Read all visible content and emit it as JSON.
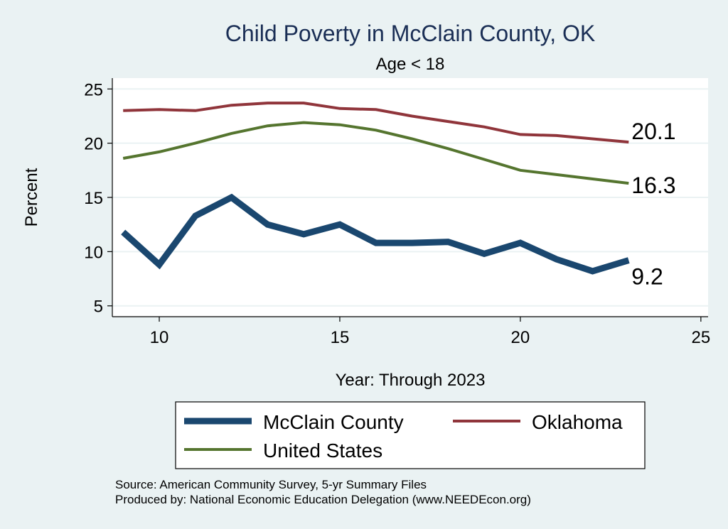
{
  "chart_data": {
    "type": "line",
    "title": "Child Poverty in McClain County, OK",
    "subtitle": "Age < 18",
    "xlabel": "Year: Through 2023",
    "ylabel": "Percent",
    "xlim": [
      8.7,
      25.2
    ],
    "ylim": [
      4,
      26
    ],
    "xticks": [
      10,
      15,
      20,
      25
    ],
    "yticks": [
      5,
      10,
      15,
      20,
      25
    ],
    "x": [
      9,
      10,
      11,
      12,
      13,
      14,
      15,
      16,
      17,
      18,
      19,
      20,
      21,
      22,
      23
    ],
    "series": [
      {
        "name": "McClain County",
        "color": "#1a476f",
        "values": [
          11.8,
          8.8,
          13.3,
          15.0,
          12.5,
          11.6,
          12.5,
          10.8,
          10.8,
          10.9,
          9.8,
          10.8,
          9.3,
          8.2,
          9.2
        ],
        "end_label": "9.2"
      },
      {
        "name": "Oklahoma",
        "color": "#90353b",
        "values": [
          23.0,
          23.1,
          23.0,
          23.5,
          23.7,
          23.7,
          23.2,
          23.1,
          22.5,
          22.0,
          21.5,
          20.8,
          20.7,
          20.4,
          20.1
        ],
        "end_label": "20.1"
      },
      {
        "name": "United States",
        "color": "#55752f",
        "values": [
          18.6,
          19.2,
          20.0,
          20.9,
          21.6,
          21.9,
          21.7,
          21.2,
          20.4,
          19.5,
          18.5,
          17.5,
          17.1,
          16.7,
          16.3
        ],
        "end_label": "16.3"
      }
    ],
    "legend_position": "bottom",
    "notes": [
      "Source: American Community Survey, 5-yr Summary Files",
      "Produced by: National Economic Education Delegation (www.NEEDEcon.org)"
    ]
  }
}
